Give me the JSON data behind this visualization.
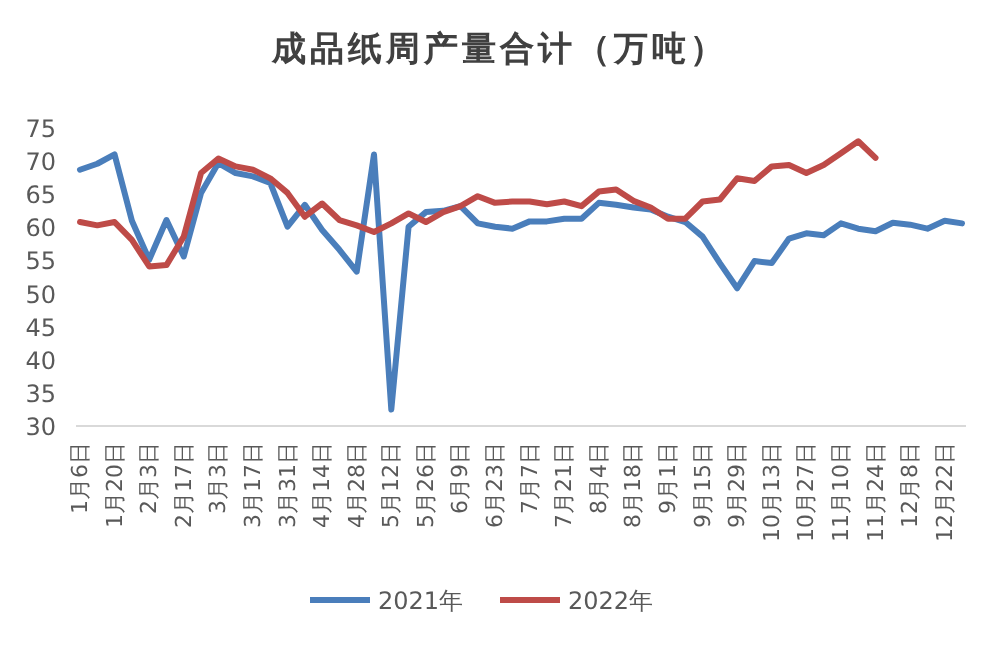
{
  "chart_data": {
    "type": "line",
    "title": "成品纸周产量合计（万吨）",
    "categories": [
      "1月6日",
      null,
      "1月20日",
      null,
      "2月3日",
      null,
      "2月17日",
      null,
      "3月3日",
      null,
      "3月17日",
      null,
      "3月31日",
      null,
      "4月14日",
      null,
      "4月28日",
      null,
      "5月12日",
      null,
      "5月26日",
      null,
      "6月9日",
      null,
      "6月23日",
      null,
      "7月7日",
      null,
      "7月21日",
      null,
      "8月4日",
      null,
      "8月18日",
      null,
      "9月1日",
      null,
      "9月15日",
      null,
      "9月29日",
      null,
      "10月13日",
      null,
      "10月27日",
      null,
      "11月10日",
      null,
      "11月24日",
      null,
      "12月8日",
      null,
      "12月22日",
      null
    ],
    "series": [
      {
        "name": "2021年",
        "color": "#4a7ebb",
        "values": [
          68.7,
          69.6,
          71,
          61,
          55.1,
          61.1,
          55.6,
          65.2,
          69.7,
          68.2,
          67.7,
          66.7,
          60.1,
          63.4,
          59.6,
          56.6,
          53.3,
          71,
          32.5,
          60.1,
          62.3,
          62.5,
          63.2,
          60.6,
          60.1,
          59.8,
          60.9,
          60.9,
          61.3,
          61.3,
          63.7,
          63.4,
          63,
          62.7,
          61.6,
          60.8,
          58.6,
          54.6,
          50.8,
          54.9,
          54.6,
          58.3,
          59.1,
          58.8,
          60.6,
          59.8,
          59.4,
          60.7,
          60.4,
          59.8,
          61,
          60.6
        ]
      },
      {
        "name": "2022年",
        "color": "#be4b48",
        "values": [
          60.8,
          60.3,
          60.8,
          58.1,
          54.1,
          54.3,
          58.6,
          68.2,
          70.4,
          69.2,
          68.7,
          67.4,
          65.2,
          61.6,
          63.6,
          61.1,
          60.3,
          59.3,
          60.6,
          62.1,
          60.8,
          62.3,
          63.2,
          64.7,
          63.7,
          63.9,
          63.9,
          63.5,
          63.9,
          63.2,
          65.4,
          65.7,
          64,
          63,
          61.3,
          61.3,
          63.9,
          64.2,
          67.4,
          67,
          69.2,
          69.4,
          68.2,
          69.4,
          71.2,
          73,
          70.5,
          null,
          null,
          null,
          null,
          null
        ]
      }
    ],
    "ylim": [
      30,
      75
    ],
    "yticks": [
      30,
      35,
      40,
      45,
      50,
      55,
      60,
      65,
      70,
      75
    ],
    "legend": "bottom"
  }
}
